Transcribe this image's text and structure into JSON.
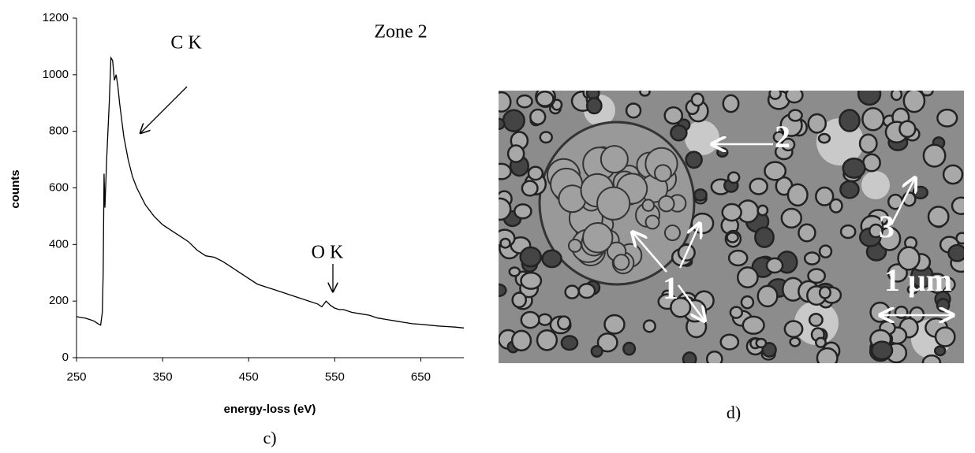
{
  "chart_data": {
    "type": "line",
    "color": "#000000",
    "ylabel": "counts",
    "xlabel": "energy-loss (eV)",
    "annotations": [
      "Zone 2",
      "C K",
      "O K"
    ],
    "caption": "c)",
    "x": [
      250,
      255,
      260,
      265,
      270,
      275,
      278,
      280,
      281,
      282,
      283,
      285,
      288,
      290,
      292,
      294,
      296,
      298,
      300,
      305,
      310,
      315,
      320,
      330,
      340,
      350,
      360,
      370,
      380,
      390,
      400,
      410,
      420,
      430,
      440,
      450,
      460,
      470,
      480,
      490,
      500,
      510,
      520,
      530,
      535,
      540,
      545,
      550,
      555,
      560,
      570,
      580,
      590,
      600,
      610,
      620,
      630,
      640,
      650,
      660,
      670,
      680,
      690,
      700
    ],
    "values": [
      145,
      142,
      140,
      135,
      130,
      120,
      115,
      160,
      300,
      650,
      530,
      700,
      900,
      1060,
      1050,
      980,
      1000,
      960,
      900,
      780,
      700,
      640,
      600,
      540,
      500,
      470,
      450,
      430,
      410,
      380,
      360,
      355,
      340,
      320,
      300,
      280,
      260,
      250,
      240,
      230,
      220,
      210,
      200,
      190,
      180,
      200,
      185,
      175,
      170,
      170,
      160,
      155,
      150,
      140,
      135,
      130,
      125,
      120,
      118,
      115,
      112,
      110,
      108,
      105
    ],
    "xlim": [
      250,
      700
    ],
    "xticks": [
      250,
      350,
      450,
      550,
      650
    ],
    "ylim": [
      0,
      1200
    ],
    "yticks": [
      0,
      200,
      400,
      600,
      800,
      1000,
      1200
    ],
    "grid": false
  },
  "micrograph": {
    "labels": [
      "1",
      "2",
      "3",
      "1 μm"
    ],
    "caption": "d)"
  }
}
